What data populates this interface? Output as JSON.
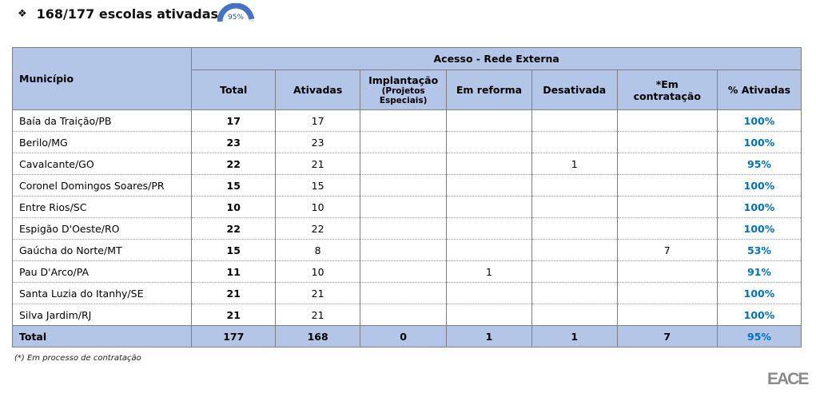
{
  "header": {
    "bullet_icon": "diamond-bullet-icon",
    "title": "168/177 escolas ativadas",
    "gauge_value": 95,
    "gauge_label": "95%",
    "gauge_color": "#4472c4"
  },
  "table": {
    "col_municipio": "Município",
    "group_header": "Acesso - Rede Externa",
    "columns": [
      "Total",
      "Ativadas",
      "Implantação",
      "(Projetos Especiais)",
      "Em reforma",
      "Desativada",
      "*Em contratação",
      "% Ativadas"
    ],
    "rows": [
      {
        "municipio": "Baía da Traição/PB",
        "total": "17",
        "ativadas": "17",
        "implantacao": "",
        "reforma": "",
        "desativada": "",
        "contratacao": "",
        "pct": "100%"
      },
      {
        "municipio": "Berilo/MG",
        "total": "23",
        "ativadas": "23",
        "implantacao": "",
        "reforma": "",
        "desativada": "",
        "contratacao": "",
        "pct": "100%"
      },
      {
        "municipio": "Cavalcante/GO",
        "total": "22",
        "ativadas": "21",
        "implantacao": "",
        "reforma": "",
        "desativada": "1",
        "contratacao": "",
        "pct": "95%"
      },
      {
        "municipio": "Coronel Domingos Soares/PR",
        "total": "15",
        "ativadas": "15",
        "implantacao": "",
        "reforma": "",
        "desativada": "",
        "contratacao": "",
        "pct": "100%"
      },
      {
        "municipio": "Entre Rios/SC",
        "total": "10",
        "ativadas": "10",
        "implantacao": "",
        "reforma": "",
        "desativada": "",
        "contratacao": "",
        "pct": "100%"
      },
      {
        "municipio": "Espigão D'Oeste/RO",
        "total": "22",
        "ativadas": "22",
        "implantacao": "",
        "reforma": "",
        "desativada": "",
        "contratacao": "",
        "pct": "100%"
      },
      {
        "municipio": "Gaúcha do Norte/MT",
        "total": "15",
        "ativadas": "8",
        "implantacao": "",
        "reforma": "",
        "desativada": "",
        "contratacao": "7",
        "pct": "53%"
      },
      {
        "municipio": "Pau D'Arco/PA",
        "total": "11",
        "ativadas": "10",
        "implantacao": "",
        "reforma": "1",
        "desativada": "",
        "contratacao": "",
        "pct": "91%"
      },
      {
        "municipio": "Santa Luzia do Itanhy/SE",
        "total": "21",
        "ativadas": "21",
        "implantacao": "",
        "reforma": "",
        "desativada": "",
        "contratacao": "",
        "pct": "100%"
      },
      {
        "municipio": "Silva Jardim/RJ",
        "total": "21",
        "ativadas": "21",
        "implantacao": "",
        "reforma": "",
        "desativada": "",
        "contratacao": "",
        "pct": "100%"
      }
    ],
    "total_row": {
      "municipio": "Total",
      "total": "177",
      "ativadas": "168",
      "implantacao": "0",
      "reforma": "1",
      "desativada": "1",
      "contratacao": "7",
      "pct": "95%"
    }
  },
  "footnote": "(*) Em processo de contratação",
  "logo": "EACE"
}
